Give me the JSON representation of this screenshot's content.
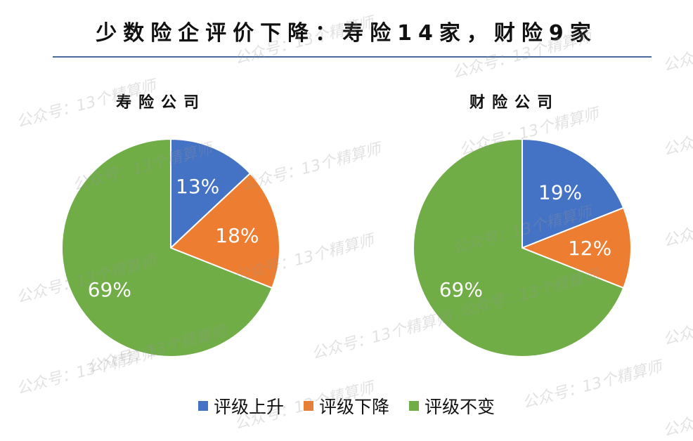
{
  "watermark": "公众号：13个精算师",
  "chart_data": [
    {
      "type": "pie",
      "title": "少数险企评价下降：寿险14家，财险9家",
      "subtitle": "寿险公司",
      "categories": [
        "评级上升",
        "评级下降",
        "评级不变"
      ],
      "values": [
        13,
        18,
        69
      ],
      "labels": [
        "13%",
        "18%",
        "69%"
      ],
      "colors": [
        "#4472C4",
        "#ED7D31",
        "#70AD47"
      ],
      "legend": "bottom"
    },
    {
      "type": "pie",
      "subtitle": "财险公司",
      "categories": [
        "评级上升",
        "评级下降",
        "评级不变"
      ],
      "values": [
        19,
        12,
        69
      ],
      "labels": [
        "19%",
        "12%",
        "69%"
      ],
      "colors": [
        "#4472C4",
        "#ED7D31",
        "#70AD47"
      ],
      "legend": "bottom"
    }
  ]
}
